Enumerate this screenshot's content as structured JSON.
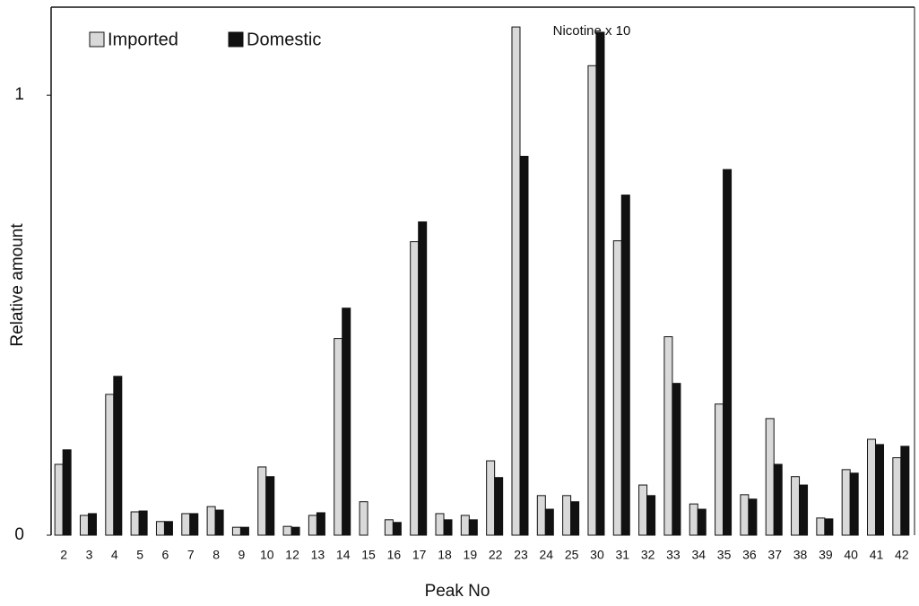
{
  "chart_data": {
    "type": "bar",
    "x_label": "Peak No",
    "y_label": "Relative amount",
    "annotation": "Nicotine x 10",
    "categories": [
      "2",
      "3",
      "4",
      "5",
      "6",
      "7",
      "8",
      "9",
      "10",
      "12",
      "13",
      "14",
      "15",
      "16",
      "17",
      "18",
      "19",
      "22",
      "23",
      "24",
      "25",
      "30",
      "31",
      "32",
      "33",
      "34",
      "35",
      "36",
      "37",
      "38",
      "39",
      "40",
      "41",
      "42"
    ],
    "series": [
      {
        "name": "Imported",
        "color": "#d9d9d9",
        "values": [
          0.161,
          0.045,
          0.32,
          0.053,
          0.031,
          0.049,
          0.065,
          0.018,
          0.155,
          0.02,
          0.045,
          0.447,
          0.076,
          0.035,
          0.667,
          0.049,
          0.045,
          0.169,
          1.155,
          0.09,
          0.09,
          1.067,
          0.669,
          0.114,
          0.451,
          0.071,
          0.298,
          0.092,
          0.265,
          0.133,
          0.039,
          0.149,
          0.218,
          0.176
        ]
      },
      {
        "name": "Domestic",
        "color": "#111111",
        "values": [
          0.194,
          0.049,
          0.361,
          0.055,
          0.031,
          0.049,
          0.057,
          0.018,
          0.133,
          0.018,
          0.051,
          0.516,
          0,
          0.029,
          0.712,
          0.035,
          0.035,
          0.131,
          0.861,
          0.059,
          0.076,
          1.143,
          0.773,
          0.09,
          0.345,
          0.059,
          0.831,
          0.082,
          0.161,
          0.114,
          0.037,
          0.141,
          0.206,
          0.202
        ]
      }
    ],
    "ylim": [
      0,
      1.2
    ],
    "yticks": [
      0,
      1
    ],
    "legend": "top-left"
  }
}
